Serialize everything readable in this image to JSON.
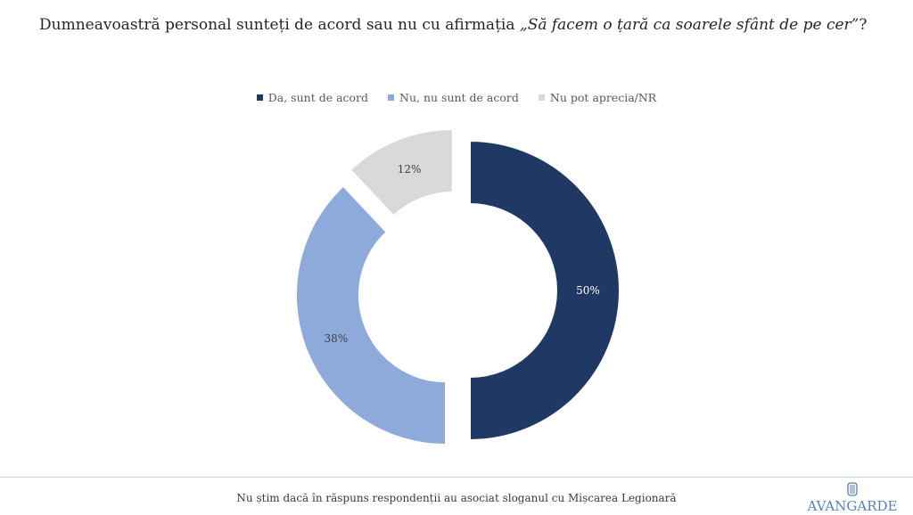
{
  "header": {
    "title_prefix": "Dumneavoastră personal sunteți de acord sau nu cu afirmația ",
    "title_quote": "„Să facem o țară ca soarele sfânt de pe cer”",
    "title_suffix": "?"
  },
  "footer": {
    "note": "Nu știm dacă în răspuns respondenții au asociat sloganul cu Mișcarea Legionară",
    "logo_text": "AVANGARDE"
  },
  "chart_data": {
    "type": "pie",
    "style": "donut-exploded",
    "legend_position": "top",
    "series": [
      {
        "name": "Da, sunt de acord",
        "value": 50,
        "label": "50%",
        "color": "#203864",
        "label_color": "#ffffff"
      },
      {
        "name": "Nu, nu sunt de acord",
        "value": 38,
        "label": "38%",
        "color": "#8eaadb",
        "label_color": "#404040"
      },
      {
        "name": "Nu pot aprecia/NR",
        "value": 12,
        "label": "12%",
        "color": "#d9d9d9",
        "label_color": "#404040"
      }
    ]
  }
}
